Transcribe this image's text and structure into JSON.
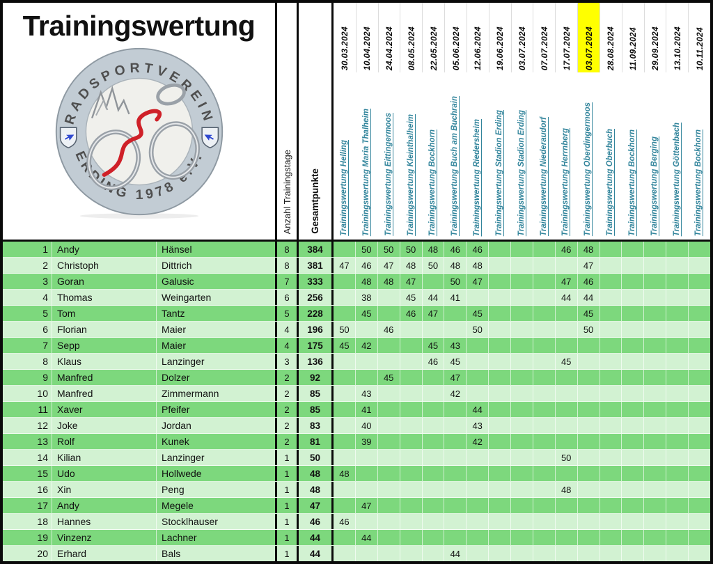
{
  "title": "Trainingswertung",
  "logo": {
    "top_text": "RADSPORTVEREIN",
    "bottom_text": "ERDING 1978 e.V."
  },
  "columns": {
    "days_label": "Anzahl Trainingstage",
    "total_label": "Gesamtpunkte",
    "events": [
      {
        "date": "30.03.2024",
        "name": "Trainingswertung Helling",
        "highlight": false
      },
      {
        "date": "10.04.2024",
        "name": "Trainingswertung Maria Thalheim",
        "highlight": false
      },
      {
        "date": "24.04.2024",
        "name": "Trainingswertung Eittingermoos",
        "highlight": false
      },
      {
        "date": "08.05.2024",
        "name": "Trainingswertung Kleinthalheim",
        "highlight": false
      },
      {
        "date": "22.05.2024",
        "name": "Trainingswertung Bockhorn",
        "highlight": false
      },
      {
        "date": "05.06.2024",
        "name": "Trainingswertung Buch am Buchrain",
        "highlight": false
      },
      {
        "date": "12.06.2024",
        "name": "Trainingswertung Riedersheim",
        "highlight": false
      },
      {
        "date": "19.06.2024",
        "name": "Trainingswertung Stadion Erding",
        "highlight": false
      },
      {
        "date": "03.07.2024",
        "name": "Trainingswertung Stadion Erding",
        "highlight": false
      },
      {
        "date": "07.07.2024",
        "name": "Trainingswertung Niederaudorf",
        "highlight": false
      },
      {
        "date": "17.07.2024",
        "name": "Trainingswertung Herrnberg",
        "highlight": false
      },
      {
        "date": "03.07.2024",
        "name": "Trainingswertung Oberdingermoos",
        "highlight": true
      },
      {
        "date": "28.08.2024",
        "name": "Trainingswertung Oberbuch",
        "highlight": false
      },
      {
        "date": "11.09.2024",
        "name": "Trainingswertung Bockhorn",
        "highlight": false
      },
      {
        "date": "29.09.2024",
        "name": "Trainingswertung Berging",
        "highlight": false
      },
      {
        "date": "13.10.2024",
        "name": "Trainingswertung Göttenbach",
        "highlight": false
      },
      {
        "date": "10.11.2024",
        "name": "Trainingswertung Bockhorn",
        "highlight": false
      }
    ]
  },
  "colors": {
    "row_dark": "#7dd87d",
    "row_light": "#d2f2d2",
    "highlight": "#ffff00",
    "link": "#31849b"
  },
  "rows": [
    {
      "rank": 1,
      "first": "Andy",
      "last": "Hänsel",
      "days": 8,
      "total": 384,
      "points": [
        "",
        50,
        50,
        50,
        48,
        46,
        46,
        "",
        "",
        "",
        46,
        48,
        "",
        "",
        "",
        "",
        ""
      ]
    },
    {
      "rank": 2,
      "first": "Christoph",
      "last": "Dittrich",
      "days": 8,
      "total": 381,
      "points": [
        47,
        46,
        47,
        48,
        50,
        48,
        48,
        "",
        "",
        "",
        "",
        47,
        "",
        "",
        "",
        "",
        ""
      ]
    },
    {
      "rank": 3,
      "first": "Goran",
      "last": "Galusic",
      "days": 7,
      "total": 333,
      "points": [
        "",
        48,
        48,
        47,
        "",
        50,
        47,
        "",
        "",
        "",
        47,
        46,
        "",
        "",
        "",
        "",
        ""
      ]
    },
    {
      "rank": 4,
      "first": "Thomas",
      "last": "Weingarten",
      "days": 6,
      "total": 256,
      "points": [
        "",
        38,
        "",
        45,
        44,
        41,
        "",
        "",
        "",
        "",
        44,
        44,
        "",
        "",
        "",
        "",
        ""
      ]
    },
    {
      "rank": 5,
      "first": "Tom",
      "last": "Tantz",
      "days": 5,
      "total": 228,
      "points": [
        "",
        45,
        "",
        46,
        47,
        "",
        45,
        "",
        "",
        "",
        "",
        45,
        "",
        "",
        "",
        "",
        ""
      ]
    },
    {
      "rank": 6,
      "first": "Florian",
      "last": "Maier",
      "days": 4,
      "total": 196,
      "points": [
        50,
        "",
        46,
        "",
        "",
        "",
        50,
        "",
        "",
        "",
        "",
        50,
        "",
        "",
        "",
        "",
        ""
      ]
    },
    {
      "rank": 7,
      "first": "Sepp",
      "last": "Maier",
      "days": 4,
      "total": 175,
      "points": [
        45,
        42,
        "",
        "",
        45,
        43,
        "",
        "",
        "",
        "",
        "",
        "",
        "",
        "",
        "",
        "",
        ""
      ]
    },
    {
      "rank": 8,
      "first": "Klaus",
      "last": "Lanzinger",
      "days": 3,
      "total": 136,
      "points": [
        "",
        "",
        "",
        "",
        46,
        45,
        "",
        "",
        "",
        "",
        45,
        "",
        "",
        "",
        "",
        "",
        ""
      ]
    },
    {
      "rank": 9,
      "first": "Manfred",
      "last": "Dolzer",
      "days": 2,
      "total": 92,
      "points": [
        "",
        "",
        45,
        "",
        "",
        47,
        "",
        "",
        "",
        "",
        "",
        "",
        "",
        "",
        "",
        "",
        ""
      ]
    },
    {
      "rank": 10,
      "first": "Manfred",
      "last": "Zimmermann",
      "days": 2,
      "total": 85,
      "points": [
        "",
        43,
        "",
        "",
        "",
        42,
        "",
        "",
        "",
        "",
        "",
        "",
        "",
        "",
        "",
        "",
        ""
      ]
    },
    {
      "rank": 11,
      "first": "Xaver",
      "last": "Pfeifer",
      "days": 2,
      "total": 85,
      "points": [
        "",
        41,
        "",
        "",
        "",
        "",
        44,
        "",
        "",
        "",
        "",
        "",
        "",
        "",
        "",
        "",
        ""
      ]
    },
    {
      "rank": 12,
      "first": "Joke",
      "last": "Jordan",
      "days": 2,
      "total": 83,
      "points": [
        "",
        40,
        "",
        "",
        "",
        "",
        43,
        "",
        "",
        "",
        "",
        "",
        "",
        "",
        "",
        "",
        ""
      ]
    },
    {
      "rank": 13,
      "first": "Rolf",
      "last": "Kunek",
      "days": 2,
      "total": 81,
      "points": [
        "",
        39,
        "",
        "",
        "",
        "",
        42,
        "",
        "",
        "",
        "",
        "",
        "",
        "",
        "",
        "",
        ""
      ]
    },
    {
      "rank": 14,
      "first": "Kilian",
      "last": "Lanzinger",
      "days": 1,
      "total": 50,
      "points": [
        "",
        "",
        "",
        "",
        "",
        "",
        "",
        "",
        "",
        "",
        50,
        "",
        "",
        "",
        "",
        "",
        ""
      ]
    },
    {
      "rank": 15,
      "first": "Udo",
      "last": "Hollwede",
      "days": 1,
      "total": 48,
      "points": [
        48,
        "",
        "",
        "",
        "",
        "",
        "",
        "",
        "",
        "",
        "",
        "",
        "",
        "",
        "",
        "",
        ""
      ]
    },
    {
      "rank": 16,
      "first": "Xin",
      "last": "Peng",
      "days": 1,
      "total": 48,
      "points": [
        "",
        "",
        "",
        "",
        "",
        "",
        "",
        "",
        "",
        "",
        48,
        "",
        "",
        "",
        "",
        "",
        ""
      ]
    },
    {
      "rank": 17,
      "first": "Andy",
      "last": "Megele",
      "days": 1,
      "total": 47,
      "points": [
        "",
        47,
        "",
        "",
        "",
        "",
        "",
        "",
        "",
        "",
        "",
        "",
        "",
        "",
        "",
        "",
        ""
      ]
    },
    {
      "rank": 18,
      "first": "Hannes",
      "last": "Stocklhauser",
      "days": 1,
      "total": 46,
      "points": [
        46,
        "",
        "",
        "",
        "",
        "",
        "",
        "",
        "",
        "",
        "",
        "",
        "",
        "",
        "",
        "",
        ""
      ]
    },
    {
      "rank": 19,
      "first": "Vinzenz",
      "last": "Lachner",
      "days": 1,
      "total": 44,
      "points": [
        "",
        44,
        "",
        "",
        "",
        "",
        "",
        "",
        "",
        "",
        "",
        "",
        "",
        "",
        "",
        "",
        ""
      ]
    },
    {
      "rank": 20,
      "first": "Erhard",
      "last": "Bals",
      "days": 1,
      "total": 44,
      "points": [
        "",
        "",
        "",
        "",
        "",
        44,
        "",
        "",
        "",
        "",
        "",
        "",
        "",
        "",
        "",
        "",
        ""
      ]
    }
  ]
}
